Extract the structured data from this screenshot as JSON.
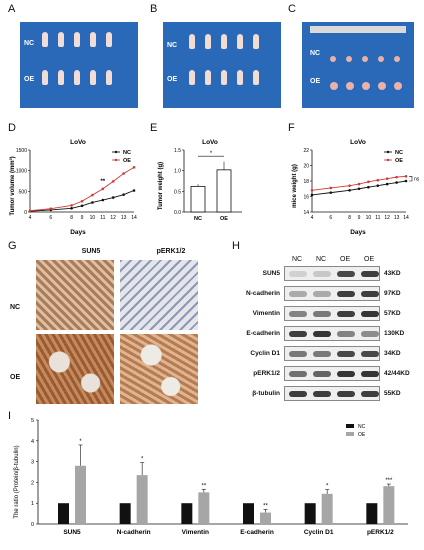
{
  "panels": {
    "A": "A",
    "B": "B",
    "C": "C",
    "D": "D",
    "E": "E",
    "F": "F",
    "G": "G",
    "H": "H",
    "I": "I"
  },
  "photos": {
    "nc": "NC",
    "oe": "OE"
  },
  "chart_data": [
    {
      "type": "line",
      "title": "LoVo",
      "xlabel": "Days",
      "ylabel": "Tumor volume (mm³)",
      "x": [
        4,
        6,
        8,
        9,
        10,
        11,
        12,
        13,
        14
      ],
      "xlim": [
        4,
        14
      ],
      "ylim": [
        0,
        1500
      ],
      "yticks": [
        0,
        500,
        1000,
        1500
      ],
      "series": [
        {
          "name": "NC",
          "color": "#111111",
          "values": [
            20,
            50,
            90,
            150,
            230,
            290,
            350,
            420,
            520
          ]
        },
        {
          "name": "OE",
          "color": "#d03a3a",
          "values": [
            30,
            80,
            160,
            260,
            410,
            560,
            740,
            930,
            1080
          ]
        }
      ],
      "annotations": [
        "**"
      ]
    },
    {
      "type": "bar",
      "title": "LoVo",
      "ylabel": "Tumor weight (g)",
      "categories": [
        "NC",
        "OE"
      ],
      "values": [
        0.62,
        1.02
      ],
      "ylim": [
        0,
        1.5
      ],
      "yticks": [
        0.0,
        0.5,
        1.0,
        1.5
      ],
      "annotations": [
        "*"
      ]
    },
    {
      "type": "line",
      "title": "LoVo",
      "xlabel": "Days",
      "ylabel": "mice weight (g)",
      "x": [
        4,
        6,
        8,
        9,
        10,
        11,
        12,
        13,
        14
      ],
      "xlim": [
        4,
        14
      ],
      "ylim": [
        14,
        22
      ],
      "yticks": [
        14,
        16,
        18,
        20,
        22
      ],
      "series": [
        {
          "name": "NC",
          "color": "#111111",
          "values": [
            16.2,
            16.5,
            16.8,
            17.0,
            17.2,
            17.4,
            17.6,
            17.8,
            18.0
          ]
        },
        {
          "name": "OE",
          "color": "#d03a3a",
          "values": [
            16.8,
            17.1,
            17.4,
            17.6,
            17.9,
            18.1,
            18.3,
            18.5,
            18.6
          ]
        }
      ],
      "annotations": [
        "ns"
      ]
    },
    {
      "type": "bar",
      "ylabel": "The ratio (Protein/β-tubulin)",
      "categories": [
        "SUN5",
        "N-cadherin",
        "Vimentin",
        "E-cadherin",
        "Cyclin D1",
        "pERK1/2"
      ],
      "ylim": [
        0,
        5
      ],
      "yticks": [
        0,
        1,
        2,
        3,
        4,
        5
      ],
      "series": [
        {
          "name": "NC",
          "color": "#111111",
          "values": [
            1,
            1,
            1,
            1,
            1,
            1
          ]
        },
        {
          "name": "OE",
          "color": "#a6a6a6",
          "values": [
            2.8,
            2.35,
            1.52,
            0.55,
            1.45,
            1.82
          ]
        }
      ],
      "annotations": [
        "*",
        "*",
        "**",
        "**",
        "*",
        "***"
      ]
    }
  ],
  "ihc": {
    "col1": "SUN5",
    "col2": "pERK1/2",
    "row1": "NC",
    "row2": "OE"
  },
  "western": {
    "lanes": [
      "NC",
      "NC",
      "OE",
      "OE"
    ],
    "rows": [
      {
        "name": "SUN5",
        "kd": "43KD",
        "bands": [
          0.15,
          0.2,
          0.85,
          0.9
        ]
      },
      {
        "name": "N-cadherin",
        "kd": "97KD",
        "bands": [
          0.35,
          0.35,
          0.9,
          0.9
        ]
      },
      {
        "name": "Vimentin",
        "kd": "57KD",
        "bands": [
          0.55,
          0.6,
          0.9,
          0.95
        ]
      },
      {
        "name": "E-cadherin",
        "kd": "130KD",
        "bands": [
          0.9,
          0.95,
          0.55,
          0.5
        ]
      },
      {
        "name": "Cyclin D1",
        "kd": "34KD",
        "bands": [
          0.6,
          0.6,
          0.85,
          0.85
        ]
      },
      {
        "name": "pERK1/2",
        "kd": "42/44KD",
        "bands": [
          0.65,
          0.7,
          0.95,
          0.95
        ]
      },
      {
        "name": "β-tubulin",
        "kd": "55KD",
        "bands": [
          0.9,
          0.9,
          0.9,
          0.9
        ]
      }
    ]
  }
}
